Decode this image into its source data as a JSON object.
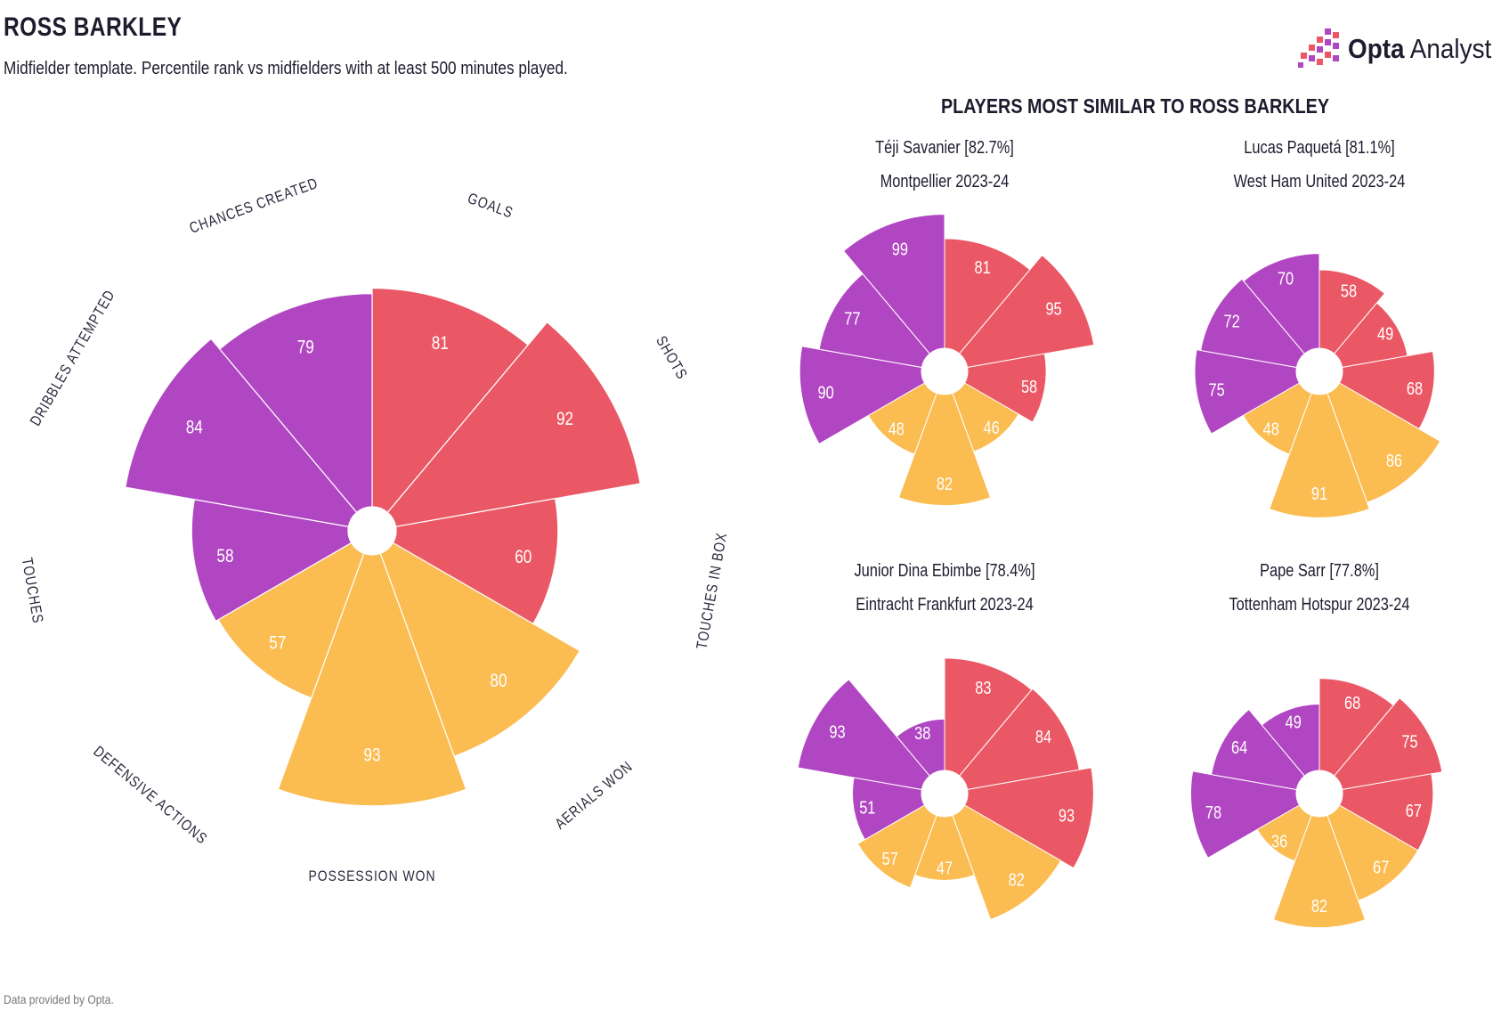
{
  "header": {
    "title": "ROSS BARKLEY",
    "subtitle": "Midfielder template. Percentile rank vs midfielders with at least 500 minutes played."
  },
  "brand": {
    "name_bold": "Opta",
    "name_light": " Analyst"
  },
  "footer": {
    "text": "Data provided by Opta."
  },
  "colors": {
    "attack": "#eb5865",
    "possession": "#fbbc52",
    "creation": "#b146c2",
    "background": "#ffffff"
  },
  "chart_data": {
    "type": "pie",
    "main": {
      "player": "ROSS BARKLEY",
      "categories": [
        "GOALS",
        "SHOTS",
        "TOUCHES IN BOX",
        "AERIALS WON",
        "POSSESSION WON",
        "DEFENSIVE ACTIONS",
        "TOUCHES",
        "DRIBBLES ATTEMPTED",
        "CHANCES CREATED"
      ],
      "groups": [
        "attack",
        "attack",
        "attack",
        "possession",
        "possession",
        "possession",
        "creation",
        "creation",
        "creation"
      ],
      "values": [
        81,
        92,
        60,
        80,
        93,
        57,
        58,
        84,
        79
      ],
      "range": [
        0,
        100
      ]
    },
    "similar_heading": "PLAYERS MOST SIMILAR TO ROSS BARKLEY",
    "similar": [
      {
        "name_line": "Téji Savanier [82.7%]",
        "team_line": "Montpellier 2023-24",
        "values": [
          81,
          95,
          58,
          46,
          82,
          48,
          90,
          77,
          99
        ]
      },
      {
        "name_line": "Lucas Paquetá [81.1%]",
        "team_line": "West Ham United 2023-24",
        "values": [
          58,
          49,
          68,
          86,
          91,
          48,
          75,
          72,
          70
        ]
      },
      {
        "name_line": "Junior Dina Ebimbe [78.4%]",
        "team_line": "Eintracht Frankfurt 2023-24",
        "values": [
          83,
          84,
          93,
          82,
          47,
          57,
          51,
          93,
          38
        ]
      },
      {
        "name_line": "Pape Sarr [77.8%]",
        "team_line": "Tottenham Hotspur 2023-24",
        "values": [
          68,
          75,
          67,
          67,
          82,
          36,
          78,
          64,
          49
        ]
      }
    ]
  }
}
